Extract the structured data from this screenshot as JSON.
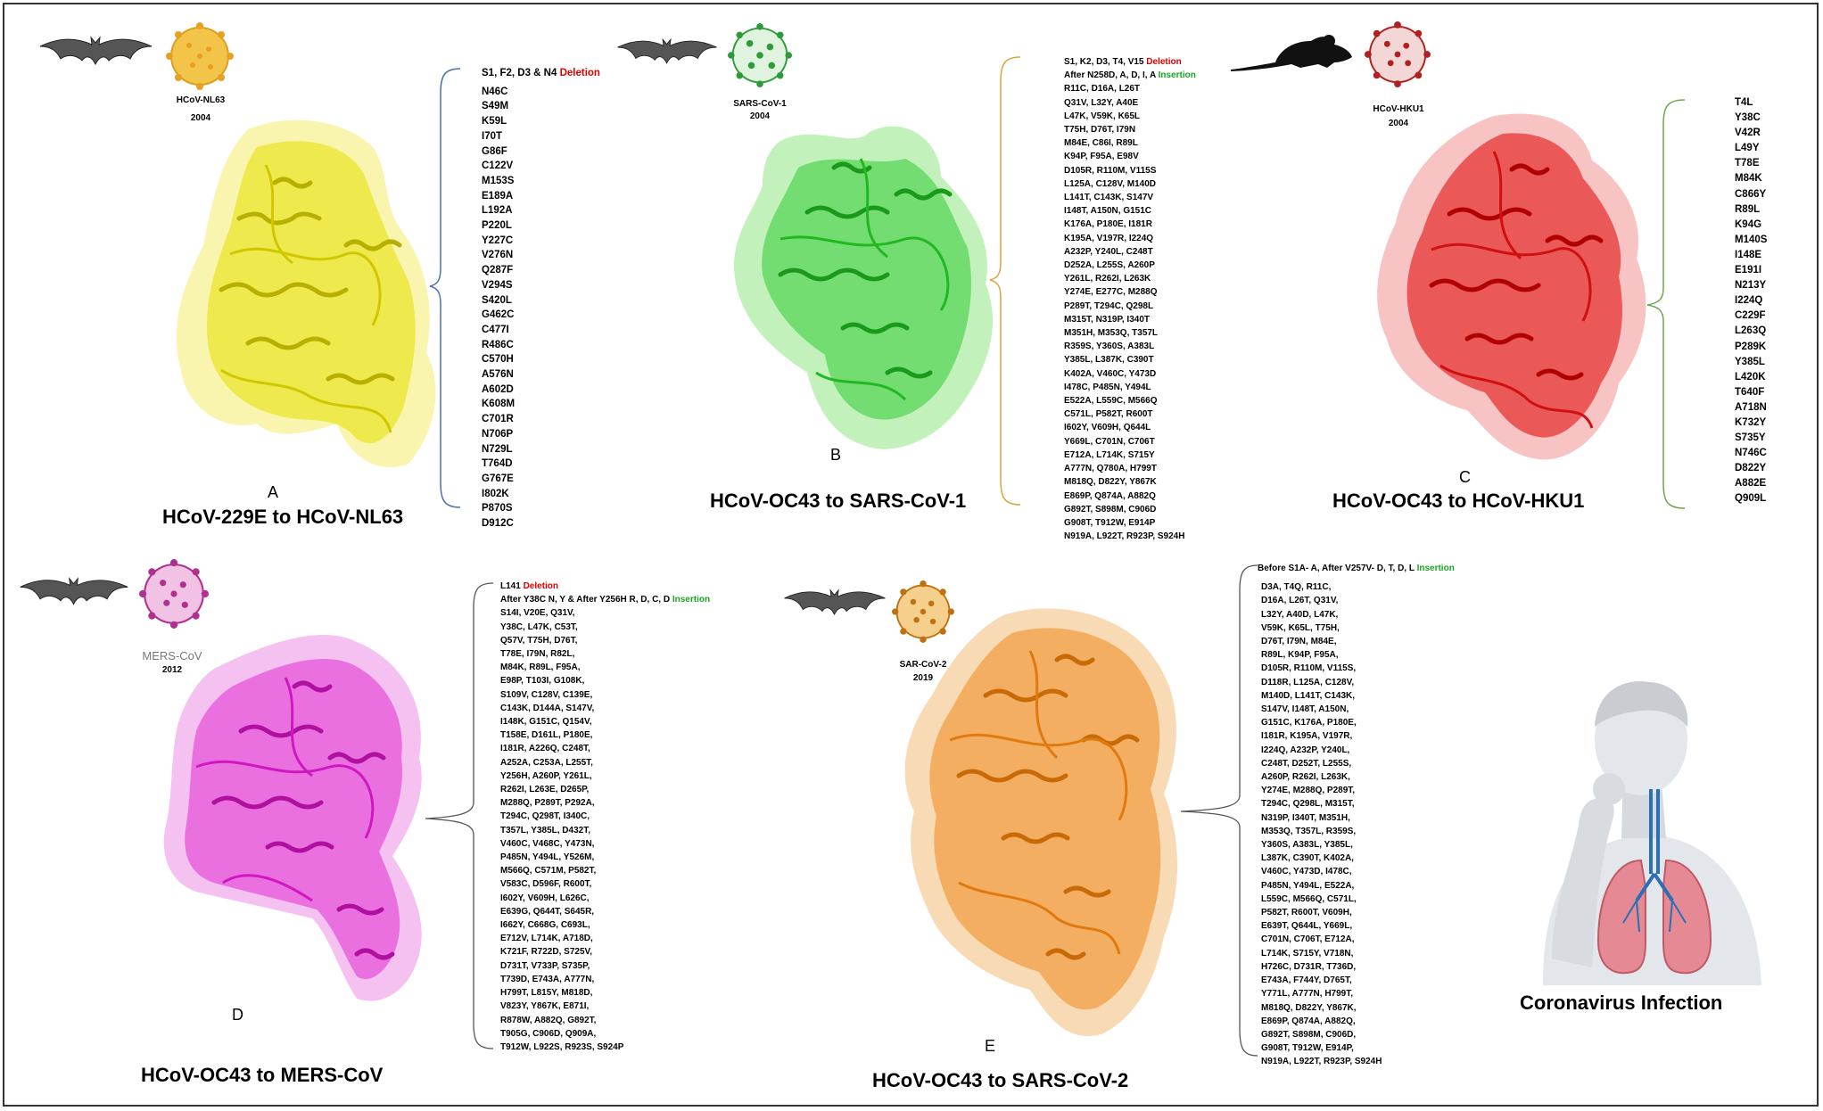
{
  "panels": {
    "A": {
      "letter": "A",
      "title": "HCoV-229E to HCoV-NL63",
      "virus_name": "HCoV-NL63",
      "year": "2004",
      "host_icon": "bat-icon",
      "protein_color": "#e6e000",
      "deletion_prefix": "S1, F2, D3 & N4",
      "deletion_word": "Deletion",
      "mutations": [
        "N46C",
        "S49M",
        "K59L",
        "I70T",
        "G86F",
        "C122V",
        "M153S",
        "E189A",
        "L192A",
        "P220L",
        "Y227C",
        "V276N",
        "Q287F",
        "V294S",
        "S420L",
        "G462C",
        "C477I",
        "R486C",
        "C570H",
        "A576N",
        "A602D",
        "K608M",
        "C701R",
        "N706P",
        "N729L",
        "T764D",
        "G767E",
        "I802K",
        "P870S",
        "D912C"
      ]
    },
    "B": {
      "letter": "B",
      "title": "HCoV-OC43 to SARS-CoV-1",
      "virus_name": "SARS-CoV-1",
      "year": "2004",
      "host_icon": "bat-icon",
      "protein_color": "#33cc33",
      "deletion_prefix": "S1, K2, D3, T4, V15",
      "deletion_word": "Deletion",
      "insertion_prefix": "After N258D, A, D, I, A",
      "insertion_word": "Insertion",
      "mutations": [
        "R11C, D16A, L26T",
        "Q31V, L32Y, A40E",
        "L47K, V59K, K65L",
        "T75H, D76T, I79N",
        "M84E, C86I, R89L",
        "K94P, F95A, E98V",
        "D105R, R110M, V115S",
        "L125A, C128V, M140D",
        "L141T, C143K, S147V",
        "I148T, A150N, G151C",
        "K176A, P180E, I181R",
        "K195A, V197R, I224Q",
        "A232P, Y240L, C248T",
        "D252A, L255S, A260P",
        "Y261L, R262I, L263K",
        "Y274E, E277C, M288Q",
        "P289T, T294C, Q298L",
        "M315T, N319P, I340T",
        "M351H, M353Q, T357L",
        "R359S, Y360S, A383L",
        "Y385L, L387K, C390T",
        "K402A, V460C, Y473D",
        "I478C, P485N, Y494L",
        "E522A, L559C, M566Q",
        "C571L, P582T, R600T",
        "I602Y, V609H, Q644L",
        "Y669L, C701N, C706T",
        "E712A, L714K, S715Y",
        "A777N, Q780A, H799T",
        "M818Q, D822Y, Y867K",
        "E869P, Q874A, A882Q",
        "G892T, S898M, C906D",
        "G908T, T912W, E914P",
        "N919A, L922T, R923P, S924H"
      ]
    },
    "C": {
      "letter": "C",
      "title": "HCoV-OC43 to HCoV-HKU1",
      "virus_name": "HCoV-HKU1",
      "year": "2004",
      "host_icon": "mouse-icon",
      "protein_color": "#e00000",
      "mutations": [
        "T4L",
        "Y38C",
        "V42R",
        "L49Y",
        "T78E",
        "M84K",
        "C866Y",
        "R89L",
        "K94G",
        "M140S",
        "I148E",
        "E191I",
        "N213Y",
        "I224Q",
        "C229F",
        "L263Q",
        "P289K",
        "Y385L",
        "L420K",
        "T640F",
        "A718N",
        "K732Y",
        "S735Y",
        "N746C",
        "D822Y",
        "A882E",
        "Q909L"
      ]
    },
    "D": {
      "letter": "D",
      "title": "HCoV-OC43 to MERS-CoV",
      "virus_name": "MERS-CoV",
      "year": "2012",
      "host_icon": "bat-icon",
      "protein_color": "#e020d0",
      "deletion_prefix": "L141",
      "deletion_word": "Deletion",
      "insertion_prefix": "After Y38C N, Y & After Y256H R, D, C, D",
      "insertion_word": "Insertion",
      "mutations": [
        "S14I, V20E, Q31V,",
        "Y38C, L47K, C53T,",
        "Q57V, T75H, D76T,",
        "T78E, I79N, R82L,",
        "M84K, R89L, F95A,",
        "E98P, T103I, G108K,",
        "S109V, C128V, C139E,",
        "C143K, D144A, S147V,",
        "I148K, G151C, Q154V,",
        "T158E, D161L, P180E,",
        "I181R, A226Q, C248T,",
        "A252A, C253A, L255T,",
        "Y256H, A260P, Y261L,",
        "R262I, L263E, D265P,",
        "M288Q, P289T, P292A,",
        "T294C, Q298T, I340C,",
        "T357L, Y385L, D432T,",
        "V460C, V468C, Y473N,",
        "P485N, Y494L, Y526M,",
        "M566Q, C571M, P582T,",
        "V583C, D596F, R600T,",
        "I602Y, V609H, L626C,",
        "E639G, Q644T, S645R,",
        "I662Y, C668G, C693L,",
        "E712V, L714K, A718D,",
        "K721F, R722D, S725V,",
        "D731T, V733P, S735P,",
        "T739D, E743A, A777N,",
        "H799T, L815Y, M818D,",
        "V823Y, Y867K, E871I,",
        "R878W, A882Q, G892T,",
        "T905G, C906D, Q909A,",
        "T912W, L922S, R923S, S924P"
      ]
    },
    "E": {
      "letter": "E",
      "title": "HCoV-OC43 to SARS-CoV-2",
      "virus_name": "SAR-CoV-2",
      "year": "2019",
      "host_icon": "bat-icon",
      "protein_color": "#f08a1c",
      "insertion_prefix": "Before S1A- A, After V257V- D, T, D, L",
      "insertion_word": "Insertion",
      "mutations": [
        "D3A, T4Q, R11C,",
        "D16A, L26T, Q31V,",
        "L32Y, A40D, L47K,",
        "V59K, K65L, T75H,",
        "D76T, I79N, M84E,",
        "R89L, K94P, F95A,",
        "D105R, R110M, V115S,",
        "D118R, L125A, C128V,",
        "M140D, L141T, C143K,",
        "S147V, I148T, A150N,",
        "G151C, K176A, P180E,",
        "I181R, K195A, V197R,",
        "I224Q, A232P, Y240L,",
        "C248T, D252T, L255S,",
        "A260P, R262I, L263K,",
        "Y274E, M288Q, P289T,",
        "T294C, Q298L, M315T,",
        "N319P, I340T, M351H,",
        "M353Q, T357L, R359S,",
        "Y360S, A383L, Y385L,",
        "L387K, C390T, K402A,",
        "V460C, Y473D, I478C,",
        "P485N, Y494L, E522A,",
        "L559C, M566Q, C571L,",
        "P582T, R600T, V609H,",
        "E639T, Q644L, Y669L,",
        "C701N, C706T, E712A,",
        "L714K, S715Y, V718N,",
        "H726C, D731R, T736D,",
        "E743A, F744Y, D765T,",
        "Y771L, A777N, H799T,",
        "M818Q, D822Y, Y867K,",
        "E869P, Q874A, A882Q,",
        "G892T, S898M, C906D,",
        "G908T, T912W, E914P,",
        "N919A, L922T, R923P, S924H"
      ]
    }
  },
  "infection_label": "Coronavirus Infection",
  "icons": [
    "bat-icon",
    "mouse-icon",
    "virus-icon",
    "protein-structure",
    "human-lungs-icon"
  ]
}
